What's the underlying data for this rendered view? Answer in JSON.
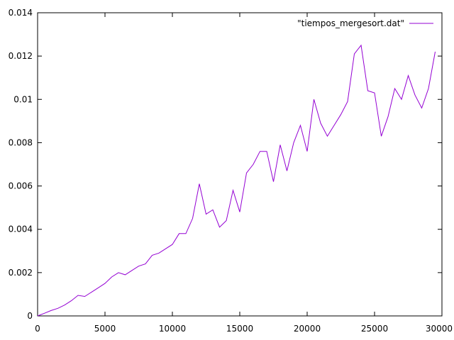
{
  "chart_data": {
    "type": "line",
    "title": "",
    "xlabel": "",
    "ylabel": "",
    "xlim": [
      0,
      30000
    ],
    "ylim": [
      0,
      0.014
    ],
    "xticks": [
      0,
      5000,
      10000,
      15000,
      20000,
      25000,
      30000
    ],
    "xtick_labels": [
      "0",
      "5000",
      "10000",
      "15000",
      "20000",
      "25000",
      "30000"
    ],
    "yticks": [
      0,
      0.002,
      0.004,
      0.006,
      0.008,
      0.01,
      0.012,
      0.014
    ],
    "ytick_labels": [
      "0",
      "0.002",
      "0.004",
      "0.006",
      "0.008",
      "0.01",
      "0.012",
      "0.014"
    ],
    "grid": false,
    "legend_position": "top-right",
    "series": [
      {
        "name": "\"tiempos_mergesort.dat\"",
        "color": "#9400d3",
        "x": [
          0,
          500,
          1000,
          1500,
          2000,
          2500,
          3000,
          3500,
          4000,
          4500,
          5000,
          5500,
          6000,
          6500,
          7000,
          7500,
          8000,
          8500,
          9000,
          9500,
          10000,
          10500,
          11000,
          11500,
          12000,
          12500,
          13000,
          13500,
          14000,
          14500,
          15000,
          15500,
          16000,
          16500,
          17000,
          17500,
          18000,
          18500,
          19000,
          19500,
          20000,
          20500,
          21000,
          21500,
          22000,
          22500,
          23000,
          23500,
          24000,
          24500,
          25000,
          25500,
          26000,
          26500,
          27000,
          27500,
          28000,
          28500,
          29000,
          29500
        ],
        "y": [
          0.0,
          0.00012,
          0.00025,
          0.00035,
          0.0005,
          0.0007,
          0.00095,
          0.0009,
          0.0011,
          0.0013,
          0.0015,
          0.0018,
          0.002,
          0.0019,
          0.0021,
          0.0023,
          0.0024,
          0.0028,
          0.0029,
          0.0031,
          0.0033,
          0.0038,
          0.0038,
          0.0045,
          0.0061,
          0.0047,
          0.0049,
          0.0041,
          0.0044,
          0.0058,
          0.0048,
          0.0066,
          0.007,
          0.0076,
          0.0076,
          0.0062,
          0.0079,
          0.0067,
          0.008,
          0.0088,
          0.0076,
          0.01,
          0.0089,
          0.0083,
          0.0088,
          0.0093,
          0.0099,
          0.0121,
          0.0125,
          0.0104,
          0.0103,
          0.0083,
          0.0092,
          0.0105,
          0.01,
          0.0111,
          0.0102,
          0.0096,
          0.0105,
          0.0122
        ]
      }
    ]
  }
}
